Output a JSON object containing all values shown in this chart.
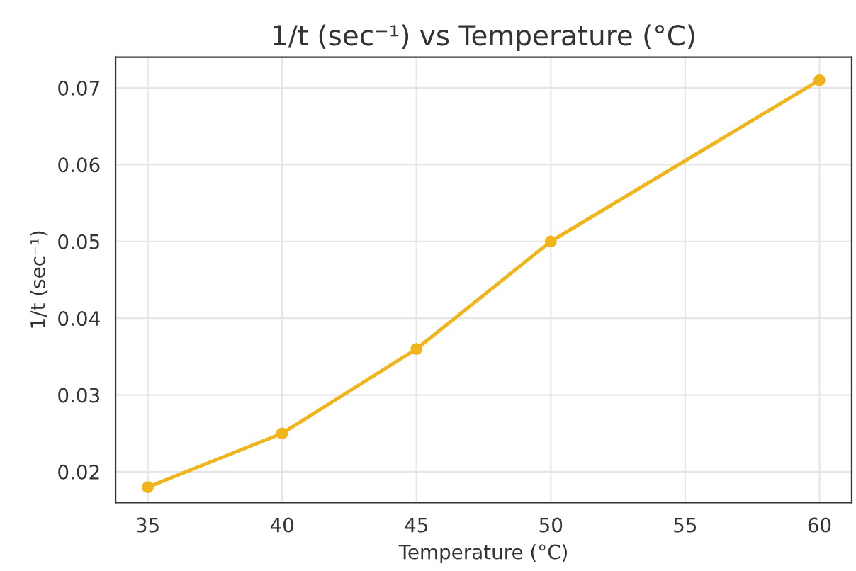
{
  "chart_data": {
    "type": "line",
    "title": "1/t (sec⁻¹) vs Temperature (°C)",
    "xlabel": "Temperature (°C)",
    "ylabel": "1/t (sec⁻¹)",
    "x": [
      35,
      40,
      45,
      50,
      60
    ],
    "series": [
      {
        "color": "#f0b41c",
        "values": [
          0.018,
          0.025,
          0.036,
          0.05,
          0.071
        ]
      }
    ],
    "xlim": [
      33.8,
      61.2
    ],
    "xticks": [
      35,
      40,
      45,
      50,
      55,
      60
    ],
    "ylim": [
      0.016,
      0.074
    ],
    "yticks": [
      0.02,
      0.03,
      0.04,
      0.05,
      0.06,
      0.07
    ],
    "grid": true,
    "marker": "circle",
    "line_style": "solid"
  }
}
